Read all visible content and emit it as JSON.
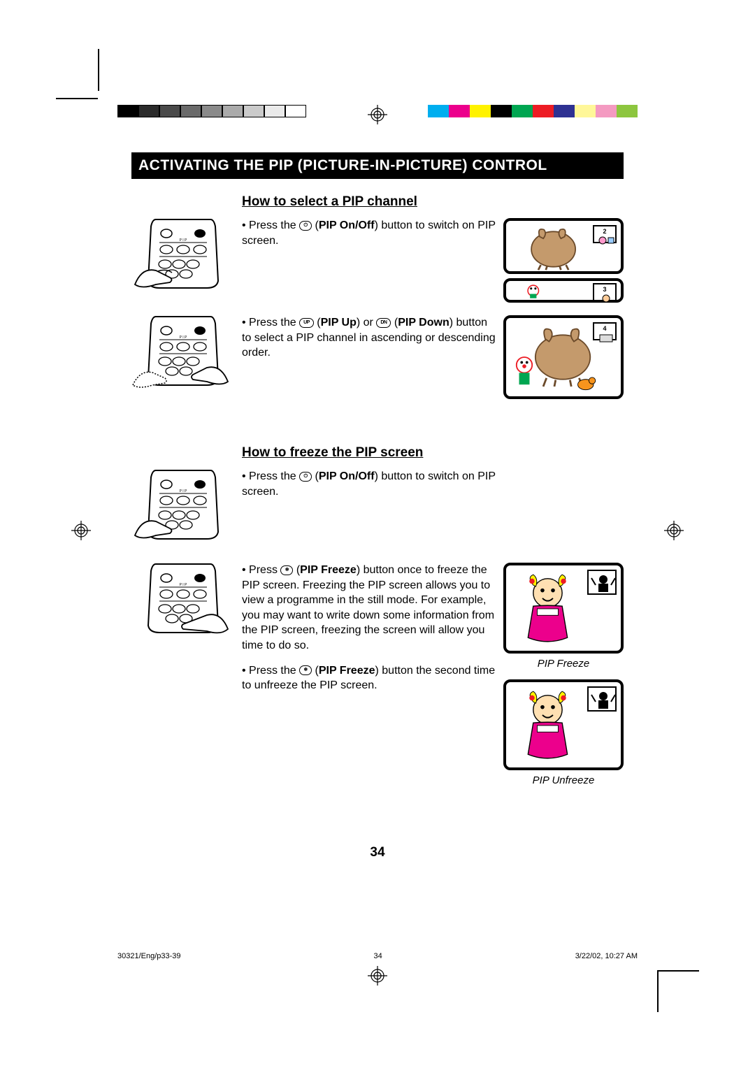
{
  "colorbars": {
    "left": [
      "#000000",
      "#2b2b2b",
      "#4a4a4a",
      "#6a6a6a",
      "#8a8a8a",
      "#aaaaaa",
      "#cacaca",
      "#eaeaea",
      "#ffffff"
    ],
    "right": [
      "#00aeef",
      "#ec008c",
      "#fff200",
      "#000000",
      "#00a651",
      "#ed1c24",
      "#2e3192",
      "#fff799",
      "#f49ac1",
      "#8dc63f"
    ]
  },
  "title": "ACTIVATING THE PIP (PICTURE-IN-PICTURE) CONTROL",
  "section1": {
    "heading": "How to select a PIP channel",
    "step1": {
      "pre": "Press the ",
      "btn": "⏻",
      "post1": " (",
      "bold": "PIP On/Off",
      "post2": ") button to switch on PIP screen."
    },
    "step2": {
      "pre": "Press the ",
      "btn1": "UP",
      "mid1": " (",
      "bold1": "PIP Up",
      "mid2": ") or ",
      "btn2": "DN",
      "mid3": " (",
      "bold2": "PIP Down",
      "post": ") button to select a PIP channel in ascending or descending order."
    },
    "pip_nums": [
      "2",
      "3",
      "4"
    ]
  },
  "section2": {
    "heading": "How to freeze the PIP screen",
    "step1": {
      "pre": "Press the ",
      "btn": "⏻",
      "post1": " (",
      "bold": "PIP On/Off",
      "post2": ") button to switch on PIP screen."
    },
    "step2": {
      "pre": "Press ",
      "btn": "❄",
      "post1": " (",
      "bold": "PIP Freeze",
      "post2": ") button once to freeze the PIP screen. Freezing the PIP screen allows you to view a programme in the still mode. For example, you may want to write down some information from the PIP screen, freezing the screen will allow you time to do so."
    },
    "step3": {
      "pre": "Press the ",
      "btn": "❄",
      "post1": " (",
      "bold": "PIP Freeze",
      "post2": ") button the second time to unfreeze the PIP screen."
    },
    "caption1": "PIP Freeze",
    "caption2": "PIP Unfreeze"
  },
  "page_number": "34",
  "footer": {
    "left": "30321/Eng/p33-39",
    "mid": "34",
    "right": "3/22/02, 10:27 AM"
  }
}
